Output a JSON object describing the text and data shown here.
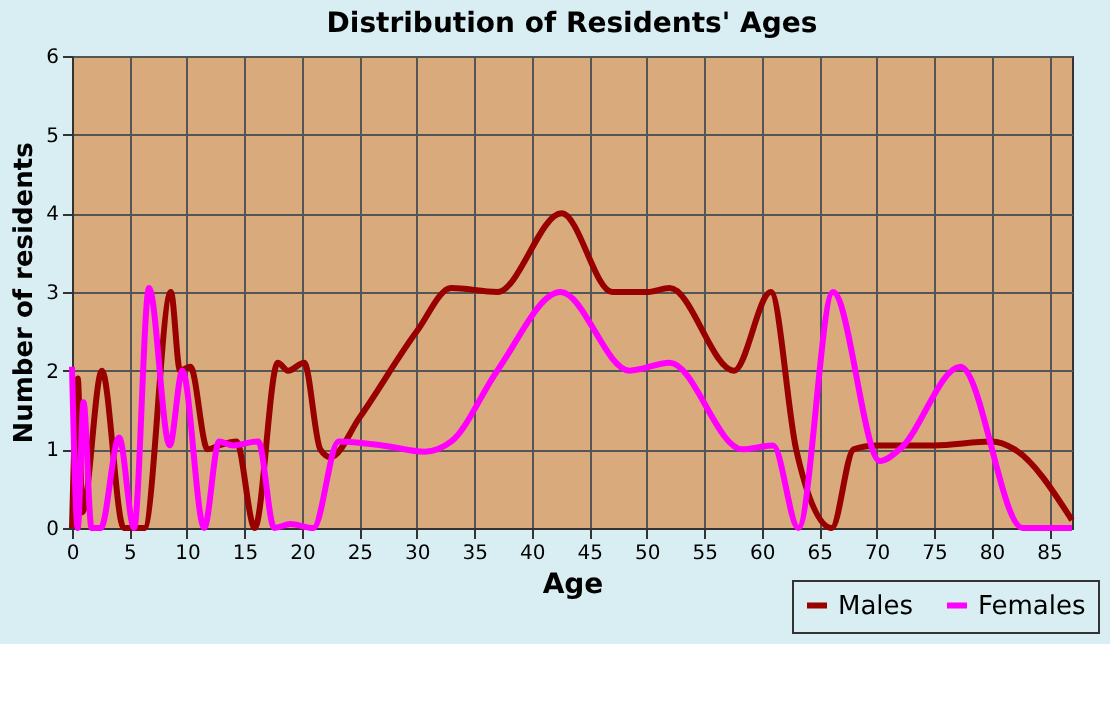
{
  "chart_data": {
    "type": "line",
    "title": "Distribution of Residents' Ages",
    "xlabel": "Age",
    "ylabel": "Number of residents",
    "xlim": [
      0,
      87
    ],
    "xticks": [
      0,
      5,
      10,
      15,
      20,
      25,
      30,
      35,
      40,
      45,
      50,
      55,
      60,
      65,
      70,
      75,
      80,
      85
    ],
    "ylim": [
      0,
      6
    ],
    "yticks": [
      0,
      1,
      2,
      3,
      4,
      5,
      6
    ],
    "grid": true,
    "legend": "bottom right",
    "marker": "none",
    "line_style": "solid",
    "series": [
      {
        "name": "Males",
        "color": "#990000",
        "x": [
          0,
          0.5,
          0.9,
          2.6,
          4.5,
          6.3,
          8.6,
          9.4,
          10.3,
          11.8,
          12.8,
          14.3,
          15.9,
          17.9,
          18.8,
          20.2,
          21.6,
          22.5,
          25,
          30,
          33,
          37,
          42.6,
          47,
          50,
          52,
          57.6,
          60.8,
          63,
          66.1,
          68,
          70,
          75,
          80,
          82,
          87
        ],
        "values": [
          0,
          1.9,
          0.2,
          2.0,
          0,
          0,
          3.0,
          2.0,
          2.05,
          1.0,
          1.05,
          1.1,
          0,
          2.1,
          2.0,
          2.1,
          1.0,
          0.9,
          1.4,
          2.5,
          3.05,
          3.0,
          4.0,
          3.0,
          3.0,
          3.05,
          2.0,
          3.0,
          1.0,
          0,
          1.0,
          1.05,
          1.05,
          1.1,
          1.0,
          0.1
        ]
      },
      {
        "name": "Females",
        "color": "#ff00ff",
        "x": [
          0,
          0.5,
          1.0,
          1.7,
          2.5,
          4.1,
          5.4,
          6.7,
          8.5,
          9.6,
          11.5,
          12.8,
          14,
          16.2,
          17.6,
          19,
          21,
          23.2,
          27,
          30.7,
          33,
          37,
          42.5,
          48.5,
          52,
          58.3,
          61,
          63.2,
          66.2,
          70.3,
          72,
          77.3,
          82.7,
          87
        ],
        "values": [
          2.05,
          0,
          1.6,
          0,
          0,
          1.15,
          0,
          3.05,
          1.05,
          2.0,
          0,
          1.1,
          1.05,
          1.1,
          0,
          0.05,
          0,
          1.1,
          1.05,
          0.97,
          1.1,
          2.0,
          3.0,
          2.0,
          2.1,
          1.0,
          1.05,
          0,
          3.0,
          0.85,
          1.0,
          2.05,
          0,
          0
        ]
      }
    ]
  }
}
